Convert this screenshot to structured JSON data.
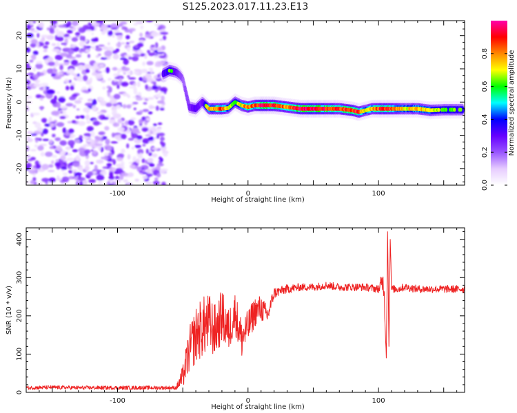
{
  "title": "S125.2023.017.11.23.E13",
  "chart_data": [
    {
      "type": "heatmap",
      "xlabel": "Height of straight line (km)",
      "ylabel": "Frequency (Hz)",
      "xlim": [
        -170,
        166
      ],
      "ylim": [
        -25,
        24.5
      ],
      "xticks": [
        -100,
        0,
        100
      ],
      "yticks": [
        -20,
        -10,
        0,
        10,
        20
      ],
      "colorbar": {
        "label": "Normalized spectral amplitude",
        "range": [
          0,
          1
        ],
        "ticks": [
          0.0,
          0.2,
          0.4,
          0.6,
          0.8
        ],
        "colors": [
          "#ffffff",
          "#e6ccff",
          "#9955ff",
          "#6600ff",
          "#0000ff",
          "#00ffff",
          "#00ff00",
          "#ffff00",
          "#ff8800",
          "#ff0000",
          "#ff00aa"
        ]
      },
      "noise_region_x": [
        -170,
        -63
      ],
      "ridge": {
        "x": [
          -65,
          -60,
          -55,
          -52,
          -50,
          -45,
          -40,
          -35,
          -30,
          -25,
          -20,
          -15,
          -10,
          -5,
          0,
          5,
          10,
          20,
          30,
          40,
          50,
          60,
          70,
          80,
          85,
          90,
          95,
          100,
          105,
          110,
          120,
          130,
          140,
          150,
          160,
          165
        ],
        "freq_hz": [
          8.5,
          9.5,
          9.0,
          8.0,
          7.0,
          -1.5,
          -2.0,
          0.0,
          -2.0,
          -2.0,
          -2.0,
          -1.8,
          0.0,
          -1.0,
          -1.5,
          -1.0,
          -1.0,
          -1.0,
          -1.5,
          -2.0,
          -2.0,
          -2.0,
          -2.0,
          -2.5,
          -3.0,
          -2.5,
          -2.0,
          -2.0,
          -2.0,
          -2.0,
          -2.0,
          -2.0,
          -2.5,
          -2.3,
          -2.3,
          -2.3
        ],
        "amplitude": [
          0.5,
          0.6,
          0.5,
          0.4,
          0.3,
          0.45,
          0.5,
          0.45,
          0.75,
          0.8,
          0.85,
          0.7,
          0.6,
          0.7,
          0.85,
          0.8,
          0.95,
          0.9,
          0.8,
          0.95,
          0.95,
          0.9,
          0.85,
          0.9,
          0.85,
          0.7,
          0.8,
          0.85,
          0.9,
          0.85,
          0.7,
          0.75,
          0.7,
          0.6,
          0.6,
          0.6
        ]
      }
    },
    {
      "type": "line",
      "xlabel": "Height of straight line (km)",
      "ylabel": "SNR (10 * v/v)",
      "xlim": [
        -170,
        166
      ],
      "ylim": [
        0,
        430
      ],
      "xticks": [
        -100,
        0,
        100
      ],
      "yticks": [
        0,
        100,
        200,
        300,
        400
      ],
      "color": "#ee2222",
      "series": [
        {
          "x": [
            -170,
            -150,
            -130,
            -110,
            -90,
            -70,
            -55,
            -50,
            -45,
            -40,
            -35,
            -30,
            -25,
            -20,
            -15,
            -10,
            -5,
            0,
            5,
            10,
            15,
            20,
            25,
            30,
            40,
            50,
            60,
            70,
            80,
            90,
            100,
            104,
            106,
            107,
            108,
            109,
            110,
            115,
            120,
            130,
            140,
            150,
            160,
            166
          ],
          "y": [
            12,
            13,
            12,
            12,
            12,
            12,
            12,
            40,
            110,
            150,
            170,
            180,
            160,
            200,
            160,
            210,
            140,
            170,
            210,
            220,
            200,
            260,
            265,
            270,
            275,
            275,
            280,
            275,
            275,
            275,
            270,
            290,
            90,
            420,
            120,
            400,
            270,
            270,
            275,
            270,
            270,
            270,
            270,
            270
          ],
          "noise_amplitude": [
            5,
            5,
            5,
            5,
            5,
            5,
            5,
            30,
            60,
            75,
            80,
            80,
            70,
            70,
            60,
            55,
            55,
            45,
            40,
            35,
            25,
            15,
            12,
            12,
            10,
            10,
            10,
            10,
            10,
            10,
            10,
            40,
            0,
            0,
            0,
            0,
            10,
            10,
            10,
            10,
            10,
            10,
            10,
            10
          ]
        }
      ]
    }
  ]
}
